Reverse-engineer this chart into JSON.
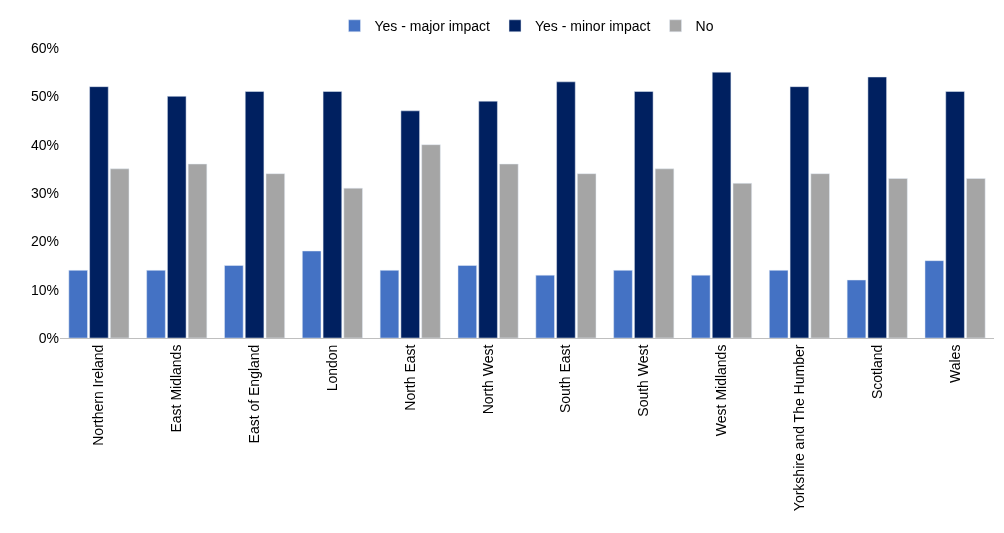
{
  "chart_data": {
    "type": "bar",
    "categories": [
      "Northern Ireland",
      "East Midlands",
      "East of England",
      "London",
      "North East",
      "North West",
      "South East",
      "South West",
      "West Midlands",
      "Yorkshire and The Humber",
      "Scotland",
      "Wales"
    ],
    "series": [
      {
        "name": "Yes - major impact",
        "color": "#4472c4",
        "values": [
          14,
          14,
          15,
          18,
          14,
          15,
          13,
          14,
          13,
          14,
          12,
          16
        ]
      },
      {
        "name": "Yes - minor impact",
        "color": "#002060",
        "values": [
          52,
          50,
          51,
          51,
          47,
          49,
          53,
          51,
          55,
          52,
          54,
          51
        ]
      },
      {
        "name": "No",
        "color": "#a5a5a5",
        "values": [
          35,
          36,
          34,
          31,
          40,
          36,
          34,
          35,
          32,
          34,
          33,
          33
        ]
      }
    ],
    "ylim": [
      0,
      60
    ],
    "yticks": [
      {
        "value": 0,
        "label": "0%"
      },
      {
        "value": 10,
        "label": "10%"
      },
      {
        "value": 20,
        "label": "20%"
      },
      {
        "value": 30,
        "label": "30%"
      },
      {
        "value": 40,
        "label": "40%"
      },
      {
        "value": 50,
        "label": "50%"
      },
      {
        "value": 60,
        "label": "60%"
      }
    ],
    "legend": "top"
  }
}
